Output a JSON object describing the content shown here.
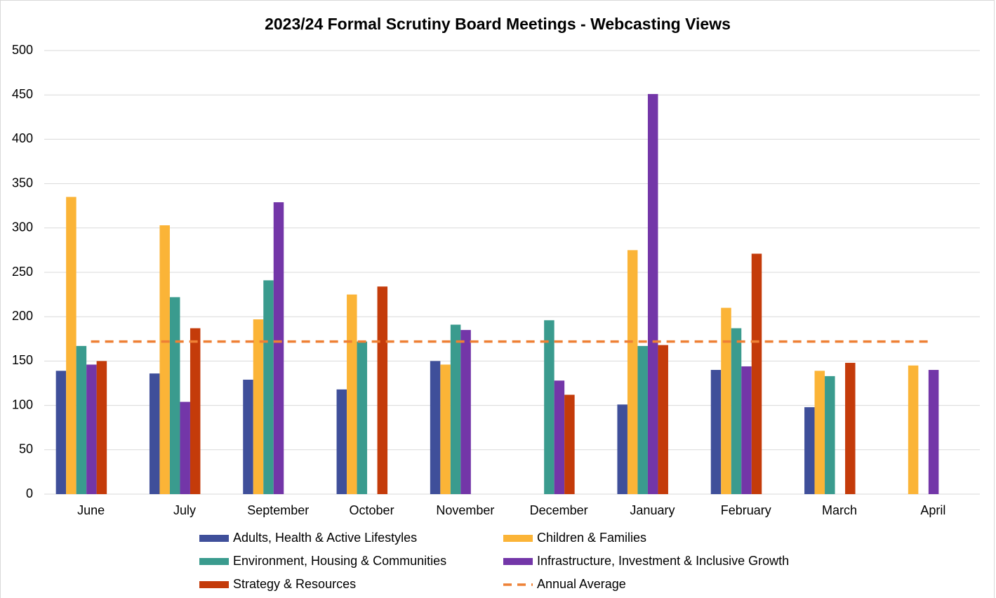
{
  "chart_data": {
    "type": "bar",
    "title": "2023/24 Formal Scrutiny Board Meetings - Webcasting Views",
    "categories": [
      "June",
      "July",
      "September",
      "October",
      "November",
      "December",
      "January",
      "February",
      "March",
      "April"
    ],
    "series": [
      {
        "name": "Adults, Health & Active Lifestyles",
        "color": "#3f4f9a",
        "values": [
          139,
          136,
          129,
          118,
          150,
          null,
          101,
          140,
          98,
          null
        ]
      },
      {
        "name": "Children & Families",
        "color": "#fbb437",
        "values": [
          335,
          303,
          197,
          225,
          146,
          null,
          275,
          210,
          139,
          145
        ]
      },
      {
        "name": "Environment, Housing & Communities",
        "color": "#3a9b8e",
        "values": [
          167,
          222,
          241,
          172,
          191,
          196,
          167,
          187,
          133,
          null
        ]
      },
      {
        "name": "Infrastructure, Investment & Inclusive Growth",
        "color": "#7336a8",
        "values": [
          146,
          104,
          329,
          null,
          185,
          128,
          451,
          144,
          null,
          140
        ]
      },
      {
        "name": "Strategy & Resources",
        "color": "#c43b0a",
        "values": [
          150,
          187,
          null,
          234,
          null,
          112,
          168,
          271,
          148,
          null
        ]
      },
      {
        "name": "Annual Average",
        "color": "#ee8035",
        "type": "line",
        "dashed": true,
        "values": [
          172,
          172,
          172,
          172,
          172,
          172,
          172,
          172,
          172,
          172
        ]
      }
    ],
    "ylim": [
      0,
      500
    ],
    "yticks": [
      0,
      50,
      100,
      150,
      200,
      250,
      300,
      350,
      400,
      450,
      500
    ],
    "grid": true,
    "legend": "bottom"
  }
}
